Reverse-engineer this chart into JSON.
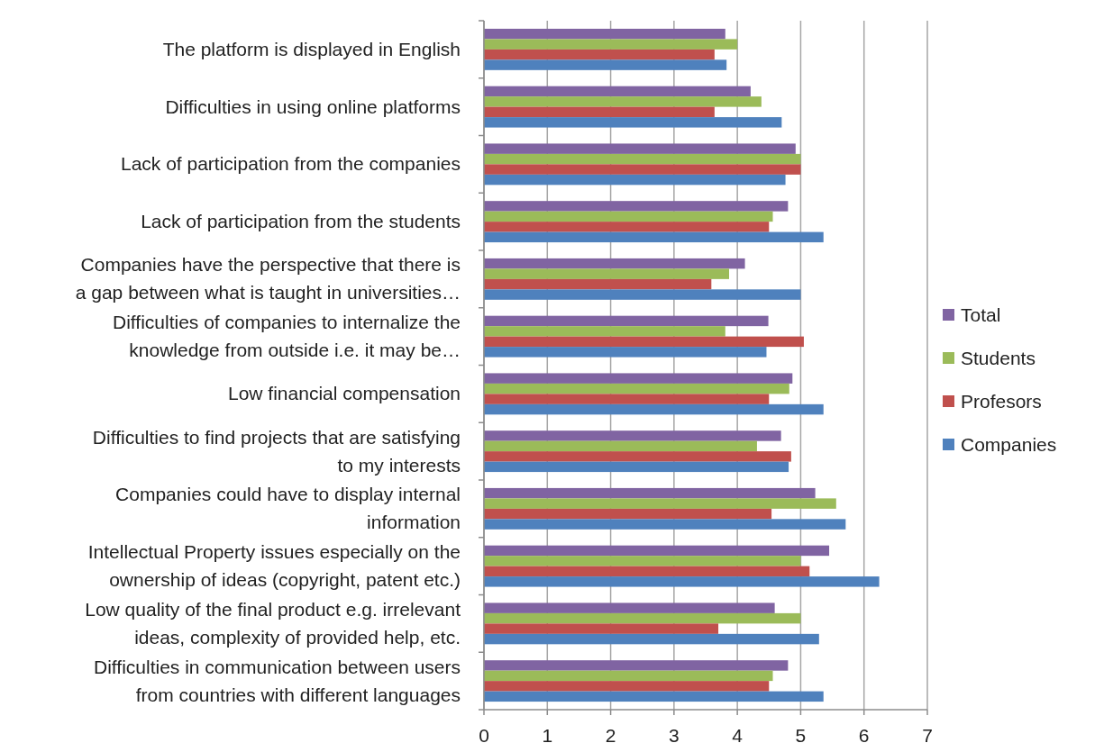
{
  "chart_data": {
    "type": "bar",
    "orientation": "horizontal",
    "categories": [
      "The platform is displayed in English",
      "Difficulties in using online platforms",
      "Lack of participation from the companies",
      "Lack of participation from the students",
      "Companies have the perspective that there is\na gap between what is taught in universities…",
      "Difficulties of companies to internalize the\nknowledge from outside i.e. it may be…",
      "Low financial compensation",
      "Difficulties to find projects that are satisfying\nto my interests",
      "Companies could have to display internal\ninformation",
      "Intellectual Property issues especially on the\nownership of ideas (copyright, patent etc.)",
      "Low quality of the final product e.g. irrelevant\nideas, complexity of provided help, etc.",
      "Difficulties in communication between users\nfrom countries with different languages"
    ],
    "series": [
      {
        "name": "Total",
        "color": "#8064a2",
        "values": [
          3.81,
          4.21,
          4.92,
          4.8,
          4.12,
          4.49,
          4.87,
          4.69,
          5.23,
          5.45,
          4.59,
          4.8
        ]
      },
      {
        "name": "Students",
        "color": "#9bbb59",
        "values": [
          4.0,
          4.38,
          5.0,
          4.56,
          3.87,
          3.81,
          4.82,
          4.31,
          5.56,
          5.0,
          5.0,
          4.56
        ]
      },
      {
        "name": "Profesors",
        "color": "#c0504d",
        "values": [
          3.64,
          3.64,
          5.0,
          4.5,
          3.59,
          5.05,
          4.5,
          4.85,
          4.54,
          5.14,
          3.7,
          4.5
        ]
      },
      {
        "name": "Companies",
        "color": "#4f81bd",
        "values": [
          3.83,
          4.7,
          4.76,
          5.36,
          5.0,
          4.46,
          5.36,
          4.81,
          5.71,
          6.24,
          5.29,
          5.36
        ]
      }
    ],
    "xlim": [
      0,
      7
    ],
    "xticks": [
      0,
      1,
      2,
      3,
      4,
      5,
      6,
      7
    ],
    "grid": "x",
    "legend": "right"
  }
}
